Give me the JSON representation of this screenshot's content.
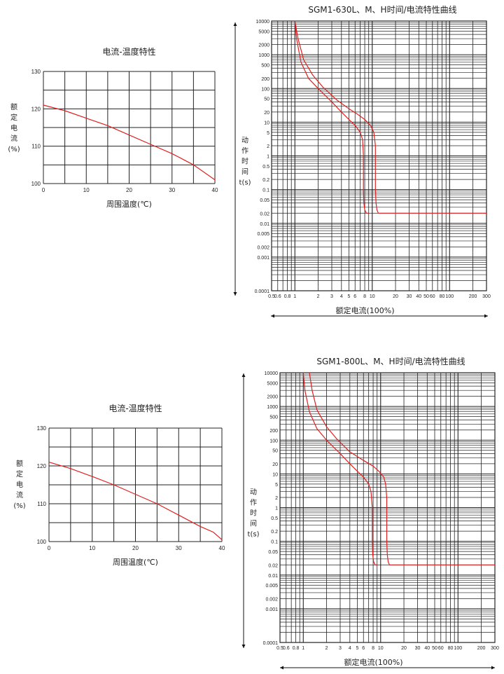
{
  "chart_data": [
    {
      "type": "line",
      "title": "电流-温度特性",
      "xlabel": "周围温度(℃)",
      "ylabel": [
        "额",
        "定",
        "电",
        "流",
        "(%)"
      ],
      "x_ticks": [
        "0",
        "10",
        "20",
        "30",
        "40"
      ],
      "y_ticks": [
        "130",
        "120",
        "110",
        "100"
      ],
      "xlim": [
        0,
        40
      ],
      "ylim": [
        100,
        130
      ],
      "grid": true,
      "series": [
        {
          "color": "#e02020",
          "x": [
            0,
            5,
            10,
            15,
            20,
            25,
            30,
            35,
            40
          ],
          "y": [
            121,
            119.5,
            117.5,
            115.5,
            113,
            110.5,
            108,
            105,
            101
          ]
        }
      ]
    },
    {
      "type": "line",
      "title": "SGM1-630L、M、H时间/电流特性曲线",
      "xlabel": "额定电流(100%)",
      "ylabel": [
        "动",
        "作",
        "时",
        "间",
        "t(s)"
      ],
      "x_scale": "log",
      "y_scale": "log",
      "xlim": [
        0.5,
        300
      ],
      "ylim": [
        0.0001,
        10000
      ],
      "grid": true,
      "x_ticks": [
        "0.5",
        "0.6",
        "0.8",
        "1",
        "2",
        "3",
        "4",
        "5",
        "6",
        "8",
        "10",
        "20",
        "30",
        "40",
        "50",
        "60",
        "80",
        "100",
        "200",
        "300"
      ],
      "x_tick_values": [
        0.5,
        0.6,
        0.8,
        1,
        2,
        3,
        4,
        5,
        6,
        8,
        10,
        20,
        30,
        40,
        50,
        60,
        80,
        100,
        200,
        300
      ],
      "y_ticks": [
        "10000",
        "5000",
        "2000",
        "1000",
        "500",
        "200",
        "100",
        "50",
        "20",
        "10",
        "5",
        "2",
        "1",
        "0.5",
        "0.2",
        "0.1",
        "0.05",
        "0.02",
        "0.01",
        "0.005",
        "0.002",
        "0.001",
        "0.0001"
      ],
      "y_tick_values": [
        10000,
        5000,
        2000,
        1000,
        500,
        200,
        100,
        50,
        20,
        10,
        5,
        2,
        1,
        0.5,
        0.2,
        0.1,
        0.05,
        0.02,
        0.01,
        0.005,
        0.002,
        0.001,
        0.0001
      ],
      "series": [
        {
          "color": "#e02020",
          "x": [
            1.0,
            1.05,
            1.2,
            1.5,
            2,
            3,
            4,
            5,
            6,
            7,
            7.5,
            7.7,
            7.7,
            7.8,
            8,
            8.4,
            9
          ],
          "y": [
            10000,
            3000,
            600,
            200,
            100,
            40,
            20,
            12,
            8,
            5,
            3,
            1,
            0.1,
            0.04,
            0.025,
            0.02,
            0.02
          ]
        },
        {
          "color": "#e02020",
          "x": [
            1.0,
            1.1,
            1.3,
            1.7,
            2.3,
            3.5,
            5,
            6.5,
            8,
            9.5,
            10.5,
            11,
            11,
            11.2,
            11.5,
            12,
            13,
            20,
            50,
            100,
            300
          ],
          "y": [
            10000,
            3000,
            700,
            250,
            110,
            45,
            25,
            17,
            12,
            8,
            5,
            2,
            0.1,
            0.04,
            0.025,
            0.02,
            0.02,
            0.02,
            0.02,
            0.02,
            0.02
          ]
        }
      ]
    },
    {
      "type": "line",
      "title": "电流-温度特性",
      "xlabel": "周围温度(℃)",
      "ylabel": [
        "额",
        "定",
        "电",
        "流",
        "(%)"
      ],
      "x_ticks": [
        "0",
        "10",
        "20",
        "30",
        "40"
      ],
      "y_ticks": [
        "130",
        "120",
        "110",
        "100"
      ],
      "xlim": [
        0,
        40
      ],
      "ylim": [
        100,
        130
      ],
      "grid": true,
      "series": [
        {
          "color": "#e02020",
          "x": [
            0,
            5,
            10,
            15,
            20,
            25,
            30,
            35,
            38,
            40
          ],
          "y": [
            121,
            119.3,
            117.2,
            115,
            112.5,
            110,
            107,
            104,
            102.5,
            100.5
          ]
        }
      ]
    },
    {
      "type": "line",
      "title": "SGM1-800L、M、H时间/电流特性曲线",
      "xlabel": "额定电流(100%)",
      "ylabel": [
        "动",
        "作",
        "时",
        "间",
        "t(s)"
      ],
      "x_scale": "log",
      "y_scale": "log",
      "xlim": [
        0.5,
        300
      ],
      "ylim": [
        0.0001,
        10000
      ],
      "grid": true,
      "x_ticks": [
        "0.5",
        "0.6",
        "0.8",
        "1",
        "2",
        "3",
        "4",
        "5",
        "6",
        "8",
        "10",
        "20",
        "30",
        "40",
        "50",
        "60",
        "80",
        "100",
        "200",
        "300"
      ],
      "x_tick_values": [
        0.5,
        0.6,
        0.8,
        1,
        2,
        3,
        4,
        5,
        6,
        8,
        10,
        20,
        30,
        40,
        50,
        60,
        80,
        100,
        200,
        300
      ],
      "y_ticks": [
        "10000",
        "5000",
        "2000",
        "1000",
        "500",
        "200",
        "100",
        "50",
        "20",
        "10",
        "5",
        "2",
        "1",
        "0.5",
        "0.2",
        "0.1",
        "0.05",
        "0.02",
        "0.01",
        "0.005",
        "0.002",
        "0.001",
        "0.0001"
      ],
      "y_tick_values": [
        10000,
        5000,
        2000,
        1000,
        500,
        200,
        100,
        50,
        20,
        10,
        5,
        2,
        1,
        0.5,
        0.2,
        0.1,
        0.05,
        0.02,
        0.01,
        0.005,
        0.002,
        0.001,
        0.0001
      ],
      "series": [
        {
          "color": "#e02020",
          "x": [
            1.0,
            1.05,
            1.2,
            1.5,
            2,
            3,
            4,
            5,
            6,
            7,
            7.5,
            7.8,
            7.8,
            7.9,
            8.1,
            8.5,
            9
          ],
          "y": [
            10000,
            3000,
            700,
            220,
            100,
            40,
            20,
            12,
            8,
            5,
            3,
            1,
            0.1,
            0.04,
            0.025,
            0.02,
            0.02
          ]
        },
        {
          "color": "#e02020",
          "x": [
            1.2,
            1.3,
            1.5,
            2,
            2.7,
            4,
            6,
            8,
            9.5,
            11,
            11.6,
            12,
            12,
            12.2,
            12.5,
            13,
            14,
            20,
            50,
            100,
            300
          ],
          "y": [
            10000,
            3000,
            800,
            250,
            110,
            45,
            25,
            17,
            12,
            8,
            5,
            2,
            0.1,
            0.04,
            0.025,
            0.02,
            0.02,
            0.02,
            0.02,
            0.02,
            0.02
          ]
        }
      ]
    }
  ]
}
